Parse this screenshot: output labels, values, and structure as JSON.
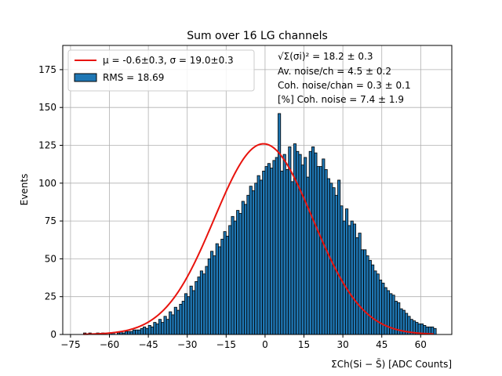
{
  "chart_data": {
    "type": "bar",
    "title": "Sum over 16 LG channels",
    "xlabel": "ΣCh(Si − S̄) [ADC Counts]",
    "ylabel": "Events",
    "xlim": [
      -78,
      72
    ],
    "ylim": [
      0,
      191
    ],
    "xticks": [
      -75,
      -60,
      -45,
      -30,
      -15,
      0,
      15,
      30,
      45,
      60
    ],
    "yticks": [
      0,
      25,
      50,
      75,
      100,
      125,
      150,
      175
    ],
    "grid": true,
    "legend_position": "top-left",
    "legend": {
      "fit_label": "μ = -0.6±0.3, σ = 19.0±0.3",
      "hist_label": "RMS = 18.69"
    },
    "annotations": {
      "line1": "√Σ(σi)² = 18.2 ± 0.3",
      "line2": "Av. noise/ch  = 4.5 ± 0.2",
      "line3": "Coh. noise/chan  = 0.3 ± 0.1",
      "line4": "[%] Coh. noise  = 7.4 ± 1.9"
    },
    "fit": {
      "mu": -0.6,
      "sigma": 19.0,
      "amplitude": 126,
      "x_range": [
        -70,
        65
      ]
    },
    "hist": {
      "bin_start": -70,
      "bin_width": 1,
      "counts": [
        1,
        0,
        1,
        0,
        0,
        1,
        0,
        1,
        0,
        0,
        1,
        1,
        0,
        1,
        2,
        1,
        2,
        2,
        2,
        3,
        3,
        3,
        4,
        5,
        4,
        6,
        5,
        8,
        7,
        10,
        8,
        12,
        10,
        15,
        13,
        18,
        16,
        20,
        22,
        27,
        25,
        32,
        29,
        35,
        38,
        42,
        40,
        45,
        50,
        55,
        52,
        60,
        58,
        63,
        68,
        65,
        72,
        78,
        75,
        82,
        80,
        88,
        86,
        92,
        98,
        95,
        100,
        105,
        102,
        108,
        111,
        113,
        110,
        115,
        117,
        146,
        108,
        119,
        109,
        124,
        101,
        126,
        121,
        119,
        112,
        117,
        104,
        121,
        124,
        120,
        111,
        111,
        116,
        109,
        103,
        100,
        97,
        92,
        102,
        85,
        75,
        83,
        72,
        75,
        73,
        64,
        67,
        56,
        56,
        52,
        49,
        46,
        42,
        40,
        36,
        34,
        31,
        29,
        27,
        26,
        22,
        21,
        17,
        16,
        14,
        12,
        10,
        9,
        8,
        7,
        7,
        6,
        5,
        5,
        5,
        4
      ]
    }
  }
}
